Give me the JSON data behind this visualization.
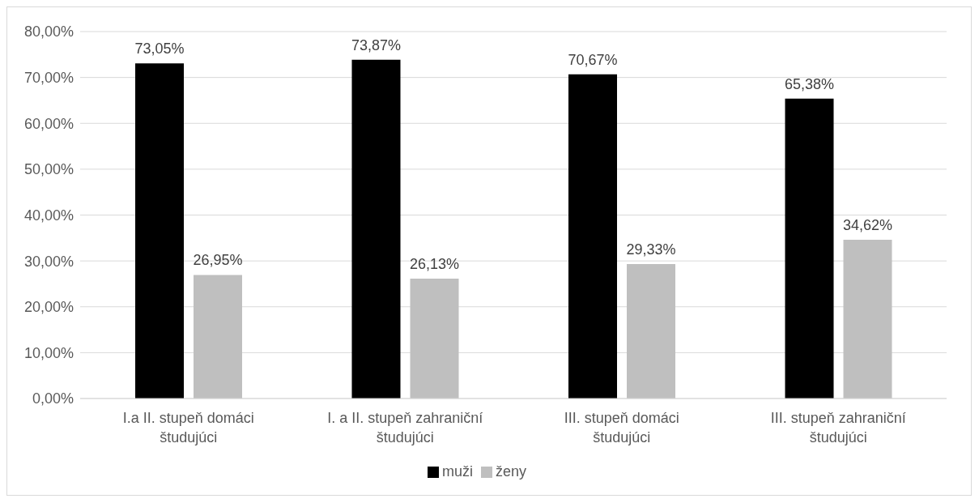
{
  "chart_data": {
    "type": "bar",
    "categories": [
      "I.a II. stupeň domáci študujúci",
      "I. a II. stupeň zahraniční študujúci",
      "III. stupeň domáci študujúci",
      "III. stupeň zahraniční študujúci"
    ],
    "series": [
      {
        "name": "muži",
        "color": "#000000",
        "values": [
          73.05,
          73.87,
          70.67,
          65.38
        ],
        "value_labels": [
          "73,05%",
          "73,87%",
          "70,67%",
          "65,38%"
        ]
      },
      {
        "name": "ženy",
        "color": "#bfbfbf",
        "values": [
          26.95,
          26.13,
          29.33,
          34.62
        ],
        "value_labels": [
          "26,95%",
          "26,13%",
          "29,33%",
          "34,62%"
        ]
      }
    ],
    "ylim": [
      0,
      80
    ],
    "yticks": [
      {
        "value": 0,
        "label": "0,00%"
      },
      {
        "value": 10,
        "label": "10,00%"
      },
      {
        "value": 20,
        "label": "20,00%"
      },
      {
        "value": 30,
        "label": "30,00%"
      },
      {
        "value": 40,
        "label": "40,00%"
      },
      {
        "value": 50,
        "label": "50,00%"
      },
      {
        "value": 60,
        "label": "60,00%"
      },
      {
        "value": 70,
        "label": "70,00%"
      },
      {
        "value": 80,
        "label": "80,00%"
      }
    ],
    "grid": "y",
    "legend": "bottom"
  }
}
